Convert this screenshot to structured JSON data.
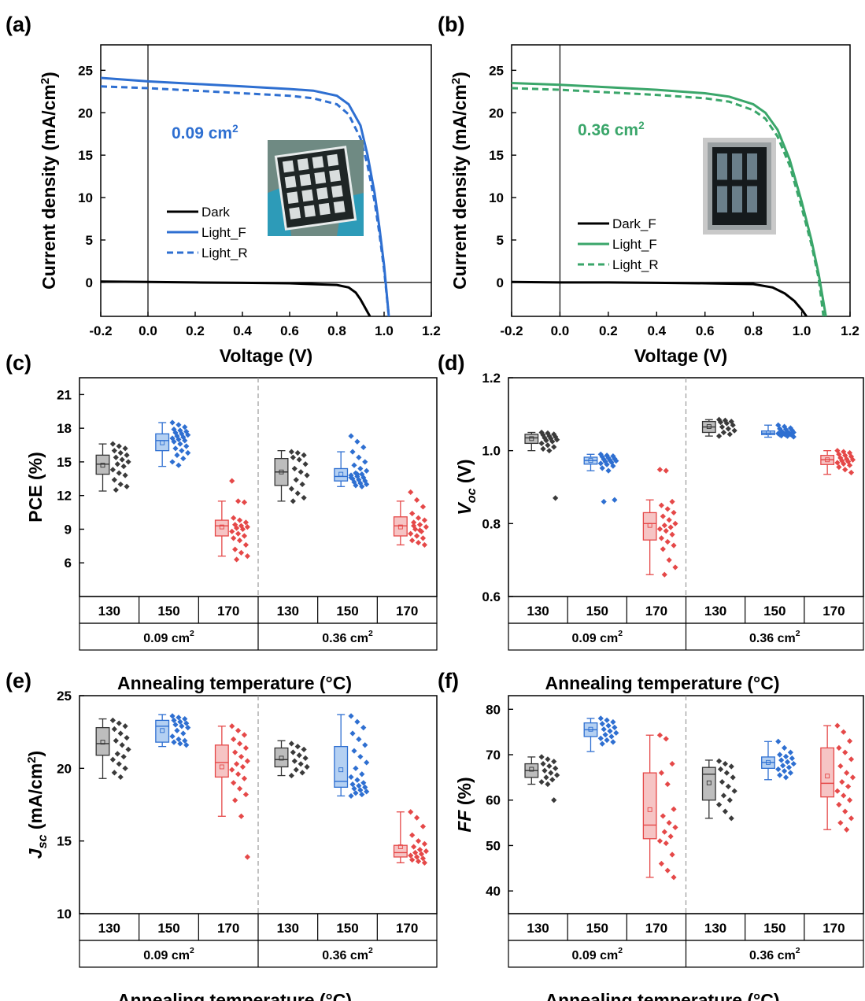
{
  "chart_data": [
    {
      "panel": "(a)",
      "type": "line",
      "xlabel": "Voltage (V)",
      "ylabel": "Current density (mA/cm²)",
      "xlim": [
        -0.2,
        1.2
      ],
      "ylim": [
        -4,
        28
      ],
      "xticks": [
        "-0.2",
        "0.0",
        "0.2",
        "0.4",
        "0.6",
        "0.8",
        "1.0",
        "1.2"
      ],
      "yticks": [
        "0",
        "5",
        "10",
        "15",
        "20",
        "25"
      ],
      "annotation": "0.09 cm²",
      "annotation_color": "#2e6fd1",
      "legend_position": "lower-left",
      "inset": "photo of substrate with 4×4 array of cells",
      "series": [
        {
          "name": "Dark",
          "color": "#000000",
          "dash": false,
          "x": [
            -0.2,
            0.0,
            0.2,
            0.4,
            0.6,
            0.8,
            0.85,
            0.88,
            0.9,
            0.92,
            0.94
          ],
          "y": [
            0.1,
            0.05,
            0.0,
            -0.05,
            -0.1,
            -0.3,
            -0.6,
            -1.2,
            -2.0,
            -3.0,
            -4.0
          ]
        },
        {
          "name": "Light_F",
          "color": "#2e6fd1",
          "dash": false,
          "x": [
            -0.2,
            0.0,
            0.2,
            0.4,
            0.6,
            0.7,
            0.8,
            0.85,
            0.9,
            0.93,
            0.96,
            0.98,
            1.0,
            1.02
          ],
          "y": [
            24.1,
            23.7,
            23.4,
            23.1,
            22.8,
            22.6,
            22.0,
            21.0,
            18.5,
            15.0,
            10.5,
            6.5,
            2.0,
            -4.0
          ]
        },
        {
          "name": "Light_R",
          "color": "#2e6fd1",
          "dash": true,
          "x": [
            -0.2,
            0.0,
            0.2,
            0.4,
            0.6,
            0.7,
            0.8,
            0.85,
            0.9,
            0.93,
            0.96,
            0.98,
            1.0,
            1.02
          ],
          "y": [
            23.1,
            22.9,
            22.6,
            22.3,
            22.0,
            21.7,
            21.0,
            19.8,
            17.0,
            13.8,
            9.5,
            5.8,
            1.5,
            -4.0
          ]
        }
      ]
    },
    {
      "panel": "(b)",
      "type": "line",
      "xlabel": "Voltage (V)",
      "ylabel": "Current density (mA/cm²)",
      "xlim": [
        -0.2,
        1.2
      ],
      "ylim": [
        -4,
        28
      ],
      "xticks": [
        "-0.2",
        "0.0",
        "0.2",
        "0.4",
        "0.6",
        "0.8",
        "1.0",
        "1.2"
      ],
      "yticks": [
        "0",
        "5",
        "10",
        "15",
        "20",
        "25"
      ],
      "annotation": "0.36 cm²",
      "annotation_color": "#3aa66a",
      "legend_position": "lower-left",
      "inset": "photo of substrate with 2×3 array of cells",
      "series": [
        {
          "name": "Dark_F",
          "color": "#000000",
          "dash": false,
          "x": [
            -0.2,
            0.0,
            0.2,
            0.4,
            0.6,
            0.8,
            0.88,
            0.93,
            0.97,
            1.0,
            1.02
          ],
          "y": [
            0.05,
            0.0,
            0.0,
            -0.05,
            -0.1,
            -0.2,
            -0.6,
            -1.3,
            -2.2,
            -3.2,
            -4.0
          ]
        },
        {
          "name": "Light_F",
          "color": "#3aa66a",
          "dash": false,
          "x": [
            -0.2,
            0.0,
            0.2,
            0.4,
            0.6,
            0.7,
            0.8,
            0.85,
            0.9,
            0.95,
            1.0,
            1.04,
            1.07,
            1.1
          ],
          "y": [
            23.5,
            23.3,
            23.0,
            22.7,
            22.3,
            21.9,
            21.0,
            20.0,
            18.0,
            14.5,
            9.5,
            5.0,
            1.0,
            -4.0
          ]
        },
        {
          "name": "Light_R",
          "color": "#3aa66a",
          "dash": true,
          "x": [
            -0.2,
            0.0,
            0.2,
            0.4,
            0.6,
            0.7,
            0.8,
            0.85,
            0.9,
            0.95,
            1.0,
            1.04,
            1.07,
            1.09
          ],
          "y": [
            22.9,
            22.7,
            22.4,
            22.1,
            21.7,
            21.3,
            20.3,
            19.3,
            17.2,
            13.8,
            8.8,
            4.5,
            0.5,
            -4.0
          ]
        }
      ]
    },
    {
      "panel": "(c)",
      "type": "box",
      "ylabel": "PCE (%)",
      "ylabel_italic": false,
      "ylim": [
        3,
        22.5
      ],
      "yticks": [
        "6",
        "9",
        "12",
        "15",
        "18",
        "21"
      ],
      "xlabel": "Annealing temperature (°C)",
      "groups": [
        "0.09 cm²",
        "0.36 cm²"
      ],
      "categories": [
        "130",
        "150",
        "170",
        "130",
        "150",
        "170"
      ],
      "boxes": [
        {
          "min": 12.4,
          "q1": 13.9,
          "median": 14.8,
          "q3": 15.6,
          "max": 16.6,
          "mean": 14.7,
          "points": [
            16.6,
            16.4,
            16.2,
            16.0,
            15.8,
            15.6,
            15.4,
            15.2,
            15.0,
            14.8,
            14.6,
            14.3,
            14.0,
            13.8,
            13.4,
            13.0,
            12.8,
            12.5
          ]
        },
        {
          "min": 14.6,
          "q1": 16.0,
          "median": 16.9,
          "q3": 17.5,
          "max": 18.5,
          "mean": 16.7,
          "points": [
            18.5,
            18.3,
            18.1,
            17.9,
            17.8,
            17.7,
            17.6,
            17.5,
            17.4,
            17.3,
            17.2,
            17.1,
            17.0,
            16.9,
            16.8,
            16.6,
            16.4,
            16.2,
            16.0,
            15.8,
            15.6,
            15.3,
            15.0,
            14.7
          ]
        },
        {
          "min": 6.6,
          "q1": 8.4,
          "median": 9.3,
          "q3": 9.8,
          "max": 11.5,
          "mean": 9.2,
          "points": [
            13.3,
            11.5,
            11.4,
            10.0,
            9.8,
            9.6,
            9.4,
            9.3,
            9.2,
            9.1,
            9.0,
            8.8,
            8.6,
            8.4,
            8.2,
            8.0,
            7.6,
            7.2,
            6.9,
            6.6,
            6.3
          ]
        },
        {
          "min": 11.5,
          "q1": 12.9,
          "median": 14.1,
          "q3": 15.3,
          "max": 16.0,
          "mean": 14.1,
          "points": [
            15.9,
            15.8,
            15.6,
            15.4,
            15.2,
            14.8,
            14.4,
            14.1,
            13.8,
            13.4,
            13.0,
            12.6,
            12.2,
            11.8,
            11.5
          ]
        },
        {
          "min": 12.8,
          "q1": 13.3,
          "median": 13.7,
          "q3": 14.4,
          "max": 15.9,
          "mean": 13.9,
          "points": [
            17.3,
            16.8,
            16.3,
            15.9,
            15.4,
            15.0,
            14.7,
            14.4,
            14.2,
            14.0,
            13.9,
            13.8,
            13.7,
            13.6,
            13.5,
            13.4,
            13.3,
            13.2,
            13.1,
            13.0,
            12.9,
            12.8,
            13.6,
            13.9
          ]
        },
        {
          "min": 7.6,
          "q1": 8.4,
          "median": 9.3,
          "q3": 10.1,
          "max": 11.5,
          "mean": 9.2,
          "points": [
            12.3,
            11.6,
            11.0,
            10.4,
            10.0,
            9.8,
            9.6,
            9.4,
            9.2,
            9.0,
            8.8,
            8.6,
            8.4,
            8.2,
            8.0,
            7.8,
            7.6,
            9.3,
            8.9
          ]
        }
      ]
    },
    {
      "panel": "(d)",
      "type": "box",
      "ylabel": "Voc (V)",
      "ylabel_italic": true,
      "ylim": [
        0.6,
        1.2
      ],
      "yticks": [
        "0.6",
        "0.8",
        "1.0",
        "1.2"
      ],
      "xlabel": "Annealing temperature (°C)",
      "groups": [
        "0.09 cm²",
        "0.36 cm²"
      ],
      "categories": [
        "130",
        "150",
        "170",
        "130",
        "150",
        "170"
      ],
      "boxes": [
        {
          "min": 1.0,
          "q1": 1.02,
          "median": 1.035,
          "q3": 1.045,
          "max": 1.05,
          "mean": 1.033,
          "points": [
            1.05,
            1.048,
            1.045,
            1.043,
            1.04,
            1.038,
            1.035,
            1.033,
            1.03,
            1.028,
            1.025,
            1.02,
            1.015,
            1.01,
            1.005,
            1.0,
            0.87
          ]
        },
        {
          "min": 0.945,
          "q1": 0.963,
          "median": 0.973,
          "q3": 0.982,
          "max": 0.99,
          "mean": 0.973,
          "points": [
            0.99,
            0.987,
            0.985,
            0.983,
            0.98,
            0.978,
            0.976,
            0.974,
            0.972,
            0.97,
            0.968,
            0.965,
            0.962,
            0.958,
            0.952,
            0.945,
            0.865,
            0.86
          ]
        },
        {
          "min": 0.66,
          "q1": 0.755,
          "median": 0.8,
          "q3": 0.83,
          "max": 0.865,
          "mean": 0.795,
          "points": [
            0.948,
            0.945,
            0.86,
            0.85,
            0.84,
            0.83,
            0.82,
            0.81,
            0.8,
            0.795,
            0.79,
            0.785,
            0.78,
            0.77,
            0.76,
            0.75,
            0.74,
            0.73,
            0.7,
            0.68,
            0.66
          ]
        },
        {
          "min": 1.04,
          "q1": 1.05,
          "median": 1.065,
          "q3": 1.08,
          "max": 1.085,
          "mean": 1.066,
          "points": [
            1.085,
            1.083,
            1.08,
            1.078,
            1.075,
            1.07,
            1.065,
            1.06,
            1.055,
            1.05,
            1.045,
            1.04
          ]
        },
        {
          "min": 1.037,
          "q1": 1.044,
          "median": 1.048,
          "q3": 1.054,
          "max": 1.07,
          "mean": 1.049,
          "points": [
            1.07,
            1.066,
            1.062,
            1.06,
            1.058,
            1.056,
            1.054,
            1.052,
            1.05,
            1.049,
            1.048,
            1.047,
            1.046,
            1.045,
            1.044,
            1.043,
            1.042,
            1.041,
            1.04,
            1.038
          ]
        },
        {
          "min": 0.935,
          "q1": 0.962,
          "median": 0.975,
          "q3": 0.987,
          "max": 1.0,
          "mean": 0.975,
          "points": [
            1.0,
            0.997,
            0.994,
            0.99,
            0.987,
            0.984,
            0.98,
            0.977,
            0.975,
            0.972,
            0.97,
            0.967,
            0.964,
            0.96,
            0.955,
            0.948,
            0.94
          ]
        }
      ]
    },
    {
      "panel": "(e)",
      "type": "box",
      "ylabel": "Jsc (mA/cm²)",
      "ylabel_italic": true,
      "ylim": [
        10,
        25
      ],
      "yticks": [
        "10",
        "15",
        "20",
        "25"
      ],
      "xlabel": "Annealing temperature (°C)",
      "groups": [
        "0.09 cm²",
        "0.36 cm²"
      ],
      "categories": [
        "130",
        "150",
        "170",
        "130",
        "150",
        "170"
      ],
      "boxes": [
        {
          "min": 19.3,
          "q1": 20.9,
          "median": 21.7,
          "q3": 22.8,
          "max": 23.4,
          "mean": 21.8,
          "points": [
            23.3,
            23.1,
            22.9,
            22.7,
            22.4,
            22.1,
            21.9,
            21.6,
            21.3,
            21.0,
            20.8,
            20.6,
            20.3,
            20.0,
            19.7,
            19.4
          ]
        },
        {
          "min": 21.5,
          "q1": 21.8,
          "median": 22.9,
          "q3": 23.3,
          "max": 23.7,
          "mean": 22.6,
          "points": [
            23.6,
            23.5,
            23.4,
            23.3,
            23.2,
            23.1,
            23.0,
            22.9,
            22.8,
            22.6,
            22.4,
            22.2,
            22.0,
            21.9,
            21.8,
            21.7,
            21.6
          ]
        },
        {
          "min": 16.7,
          "q1": 19.4,
          "median": 20.4,
          "q3": 21.6,
          "max": 22.9,
          "mean": 20.1,
          "points": [
            22.9,
            22.6,
            22.3,
            22.0,
            21.7,
            21.4,
            21.1,
            20.8,
            20.5,
            20.3,
            20.1,
            19.9,
            19.6,
            19.3,
            19.0,
            18.6,
            18.2,
            17.8,
            16.7,
            13.9
          ]
        },
        {
          "min": 19.5,
          "q1": 20.1,
          "median": 20.6,
          "q3": 21.4,
          "max": 21.9,
          "mean": 20.7,
          "points": [
            21.7,
            21.5,
            21.3,
            21.1,
            20.9,
            20.7,
            20.5,
            20.3,
            20.1,
            19.9,
            19.7,
            19.5
          ]
        },
        {
          "min": 18.1,
          "q1": 18.7,
          "median": 19.1,
          "q3": 21.5,
          "max": 23.7,
          "mean": 19.9,
          "points": [
            23.6,
            23.2,
            22.8,
            22.4,
            22.0,
            21.6,
            21.2,
            20.8,
            20.4,
            20.0,
            19.6,
            19.4,
            19.2,
            19.0,
            18.9,
            18.8,
            18.7,
            18.6,
            18.5,
            18.4,
            18.3,
            18.2,
            18.1
          ]
        },
        {
          "min": 13.5,
          "q1": 13.9,
          "median": 14.2,
          "q3": 14.7,
          "max": 17.0,
          "mean": 14.6,
          "points": [
            17.0,
            16.6,
            16.0,
            15.4,
            15.0,
            14.8,
            14.6,
            14.4,
            14.3,
            14.2,
            14.1,
            14.0,
            13.9,
            13.8,
            13.7,
            13.6,
            13.5
          ]
        }
      ]
    },
    {
      "panel": "(f)",
      "type": "box",
      "ylabel": "FF (%)",
      "ylabel_italic": true,
      "ylim": [
        35,
        83
      ],
      "yticks": [
        "40",
        "50",
        "60",
        "70",
        "80"
      ],
      "xlabel": "Annealing temperature (°C)",
      "groups": [
        "0.09 cm²",
        "0.36 cm²"
      ],
      "categories": [
        "130",
        "150",
        "170",
        "130",
        "150",
        "170"
      ],
      "boxes": [
        {
          "min": 63.5,
          "q1": 65.0,
          "median": 66.5,
          "q3": 68.0,
          "max": 69.5,
          "mean": 66.8,
          "points": [
            69.5,
            69.0,
            68.5,
            68.0,
            67.5,
            67.0,
            66.5,
            66.0,
            65.5,
            65.0,
            64.5,
            64.0,
            63.5,
            60.0
          ]
        },
        {
          "min": 70.7,
          "q1": 74.0,
          "median": 75.5,
          "q3": 77.0,
          "max": 78.0,
          "mean": 75.6,
          "points": [
            78.0,
            77.6,
            77.2,
            76.8,
            76.4,
            76.0,
            75.6,
            75.2,
            74.8,
            74.4,
            74.0,
            73.6,
            73.2,
            72.8,
            72.4
          ]
        },
        {
          "min": 43.0,
          "q1": 51.5,
          "median": 54.5,
          "q3": 66.0,
          "max": 74.3,
          "mean": 57.9,
          "points": [
            74.3,
            73.5,
            68.0,
            66.0,
            63.5,
            58.0,
            56.5,
            55.0,
            54.0,
            53.0,
            52.0,
            51.0,
            50.5,
            48.0,
            46.0,
            44.5,
            43.0
          ]
        },
        {
          "min": 56.0,
          "q1": 60.0,
          "median": 65.7,
          "q3": 67.2,
          "max": 68.8,
          "mean": 63.8,
          "points": [
            68.6,
            68.0,
            67.4,
            66.8,
            66.0,
            65.0,
            64.0,
            63.0,
            62.0,
            61.0,
            60.0,
            59.0,
            57.5,
            56.0
          ]
        },
        {
          "min": 64.5,
          "q1": 67.0,
          "median": 68.3,
          "q3": 69.5,
          "max": 72.9,
          "mean": 68.3,
          "points": [
            72.9,
            71.5,
            70.5,
            70.0,
            69.6,
            69.2,
            68.8,
            68.4,
            68.0,
            67.6,
            67.2,
            66.8,
            66.4,
            66.0,
            65.5,
            65.0
          ]
        },
        {
          "min": 53.5,
          "q1": 60.7,
          "median": 63.7,
          "q3": 71.5,
          "max": 76.4,
          "mean": 65.3,
          "points": [
            76.4,
            75.0,
            73.0,
            71.5,
            70.5,
            69.0,
            67.5,
            66.0,
            65.0,
            64.0,
            63.0,
            62.0,
            61.0,
            60.0,
            59.0,
            57.5,
            56.0,
            55.0,
            53.5
          ]
        }
      ]
    }
  ],
  "box_colors": {
    "130": {
      "stroke": "#333333",
      "fill": "#bdbdbd",
      "point": "#3a3a3a"
    },
    "150": {
      "stroke": "#2e6fd1",
      "fill": "#b4d0f2",
      "point": "#2e6fd1"
    },
    "170": {
      "stroke": "#e54848",
      "fill": "#f6c4c4",
      "point": "#e54848"
    }
  }
}
